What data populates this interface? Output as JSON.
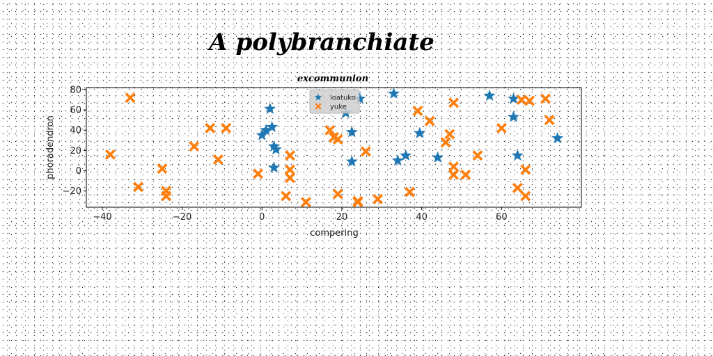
{
  "chart_data": {
    "type": "scatter",
    "title": "A polybranchiate",
    "subtitle": "excommunion",
    "xlabel": "compering",
    "ylabel": "phoradendron",
    "xlim": [
      -44,
      80
    ],
    "ylim": [
      -36,
      82
    ],
    "xticks": [
      -40,
      -20,
      0,
      20,
      40,
      60
    ],
    "yticks": [
      -20,
      0,
      20,
      40,
      60,
      80
    ],
    "grid": false,
    "legend_position": "top-center",
    "series": [
      {
        "name": "loatuko",
        "marker": "star",
        "color": "#1f77b4",
        "points": [
          [
            0,
            35
          ],
          [
            1,
            40
          ],
          [
            2,
            61
          ],
          [
            2.5,
            43
          ],
          [
            3,
            24
          ],
          [
            3.5,
            21
          ],
          [
            3,
            3
          ],
          [
            21,
            57
          ],
          [
            22.5,
            38
          ],
          [
            22.5,
            9
          ],
          [
            24.5,
            71
          ],
          [
            33,
            76
          ],
          [
            34,
            10
          ],
          [
            36,
            15
          ],
          [
            39.5,
            37
          ],
          [
            44,
            13
          ],
          [
            57,
            74
          ],
          [
            63,
            71
          ],
          [
            63,
            53
          ],
          [
            64,
            15
          ],
          [
            74,
            32
          ]
        ]
      },
      {
        "name": "yuke",
        "marker": "x",
        "color": "#ff7f0e",
        "points": [
          [
            -38,
            16
          ],
          [
            -33,
            72
          ],
          [
            -31,
            -16
          ],
          [
            -25,
            2
          ],
          [
            -24,
            -20
          ],
          [
            -24,
            -25
          ],
          [
            -17,
            24
          ],
          [
            -13,
            42
          ],
          [
            -11,
            11
          ],
          [
            -9,
            42
          ],
          [
            -1,
            -3
          ],
          [
            6,
            -25
          ],
          [
            7,
            15
          ],
          [
            7,
            1
          ],
          [
            7,
            -7
          ],
          [
            11,
            -31
          ],
          [
            17,
            40
          ],
          [
            18,
            33
          ],
          [
            19,
            31
          ],
          [
            19,
            -23
          ],
          [
            24,
            -30
          ],
          [
            24,
            -31
          ],
          [
            26,
            19
          ],
          [
            29,
            -28
          ],
          [
            37,
            -21
          ],
          [
            39,
            59
          ],
          [
            42,
            49
          ],
          [
            46,
            28
          ],
          [
            47,
            36
          ],
          [
            48,
            67
          ],
          [
            48,
            4
          ],
          [
            48,
            -4
          ],
          [
            51,
            -4
          ],
          [
            54,
            15
          ],
          [
            60,
            42
          ],
          [
            64,
            -17
          ],
          [
            65,
            70
          ],
          [
            66,
            1
          ],
          [
            66,
            -25
          ],
          [
            67,
            69
          ],
          [
            71,
            71
          ],
          [
            72,
            50
          ]
        ]
      }
    ]
  }
}
